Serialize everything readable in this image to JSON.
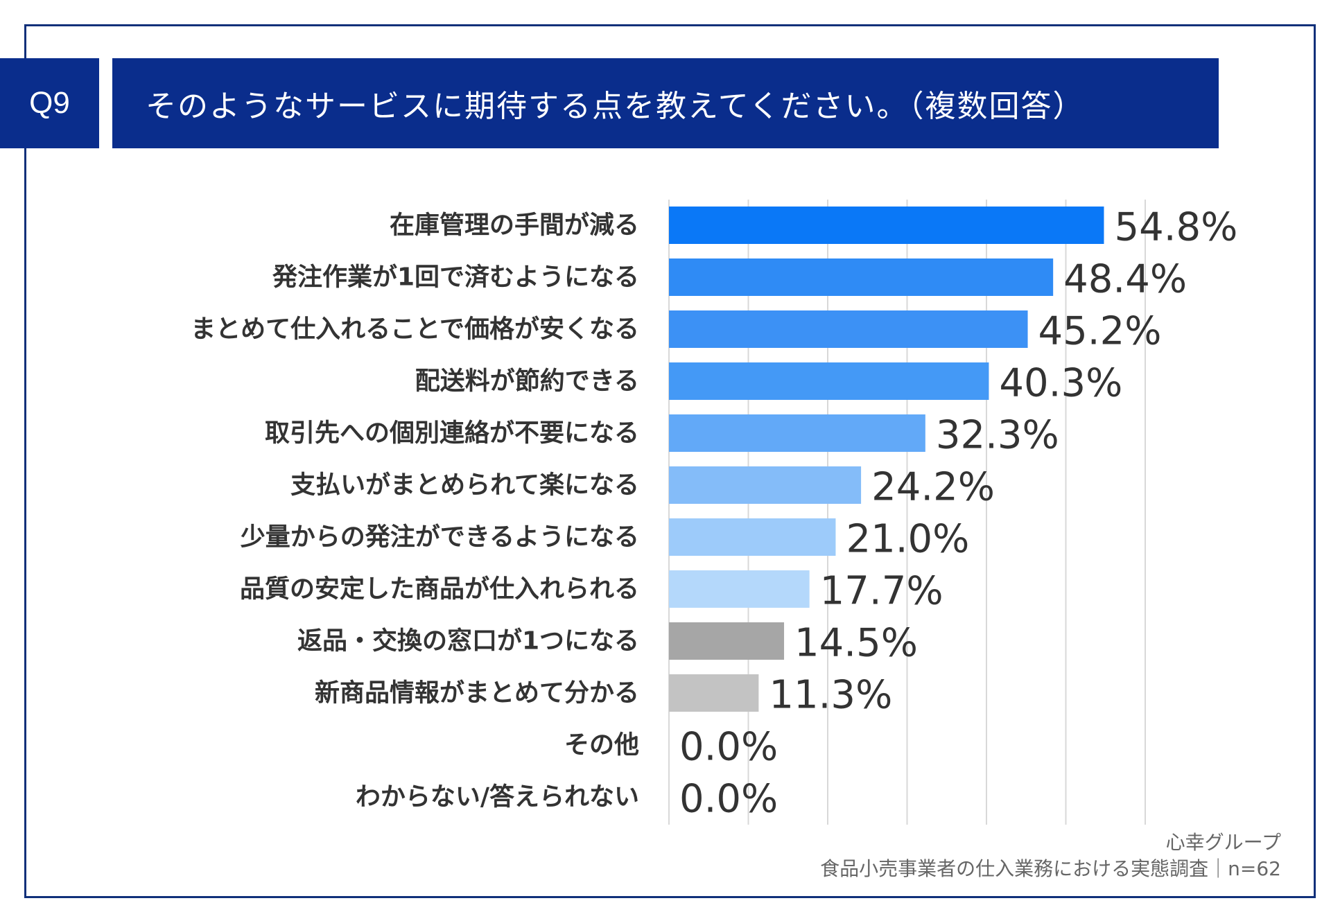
{
  "question_number": "Q9",
  "question_text": "そのようなサービスに期待する点を教えてください。（複数回答）",
  "footer": {
    "org": "心幸グループ",
    "survey": "食品小売事業者の仕入業務における実態調査｜n=62"
  },
  "chart_data": {
    "type": "bar",
    "orientation": "horizontal",
    "categories": [
      "在庫管理の手間が減る",
      "発注作業が1回で済むようになる",
      "まとめて仕入れることで価格が安くなる",
      "配送料が節約できる",
      "取引先への個別連絡が不要になる",
      "支払いがまとめられて楽になる",
      "少量からの発注ができるようになる",
      "品質の安定した商品が仕入れられる",
      "返品・交換の窓口が1つになる",
      "新商品情報がまとめて分かる",
      "その他",
      "わからない/答えられない"
    ],
    "values": [
      54.8,
      48.4,
      45.2,
      40.3,
      32.3,
      24.2,
      21.0,
      17.7,
      14.5,
      11.3,
      0.0,
      0.0
    ],
    "value_labels": [
      "54.8%",
      "48.4%",
      "45.2%",
      "40.3%",
      "32.3%",
      "24.2%",
      "21.0%",
      "17.7%",
      "14.5%",
      "11.3%",
      "0.0%",
      "0.0%"
    ],
    "bar_colors": [
      "#0a78f7",
      "#2f8bf5",
      "#3c91f5",
      "#4499f6",
      "#62a9f8",
      "#84bcf9",
      "#9dcbfa",
      "#b4d8fb",
      "#a6a6a6",
      "#c3c3c3",
      "#c3c3c3",
      "#c3c3c3"
    ],
    "xlim": [
      0,
      60
    ],
    "grid": true,
    "gridline_color": "#d8d8d8",
    "title": "",
    "xlabel": "",
    "ylabel": ""
  }
}
